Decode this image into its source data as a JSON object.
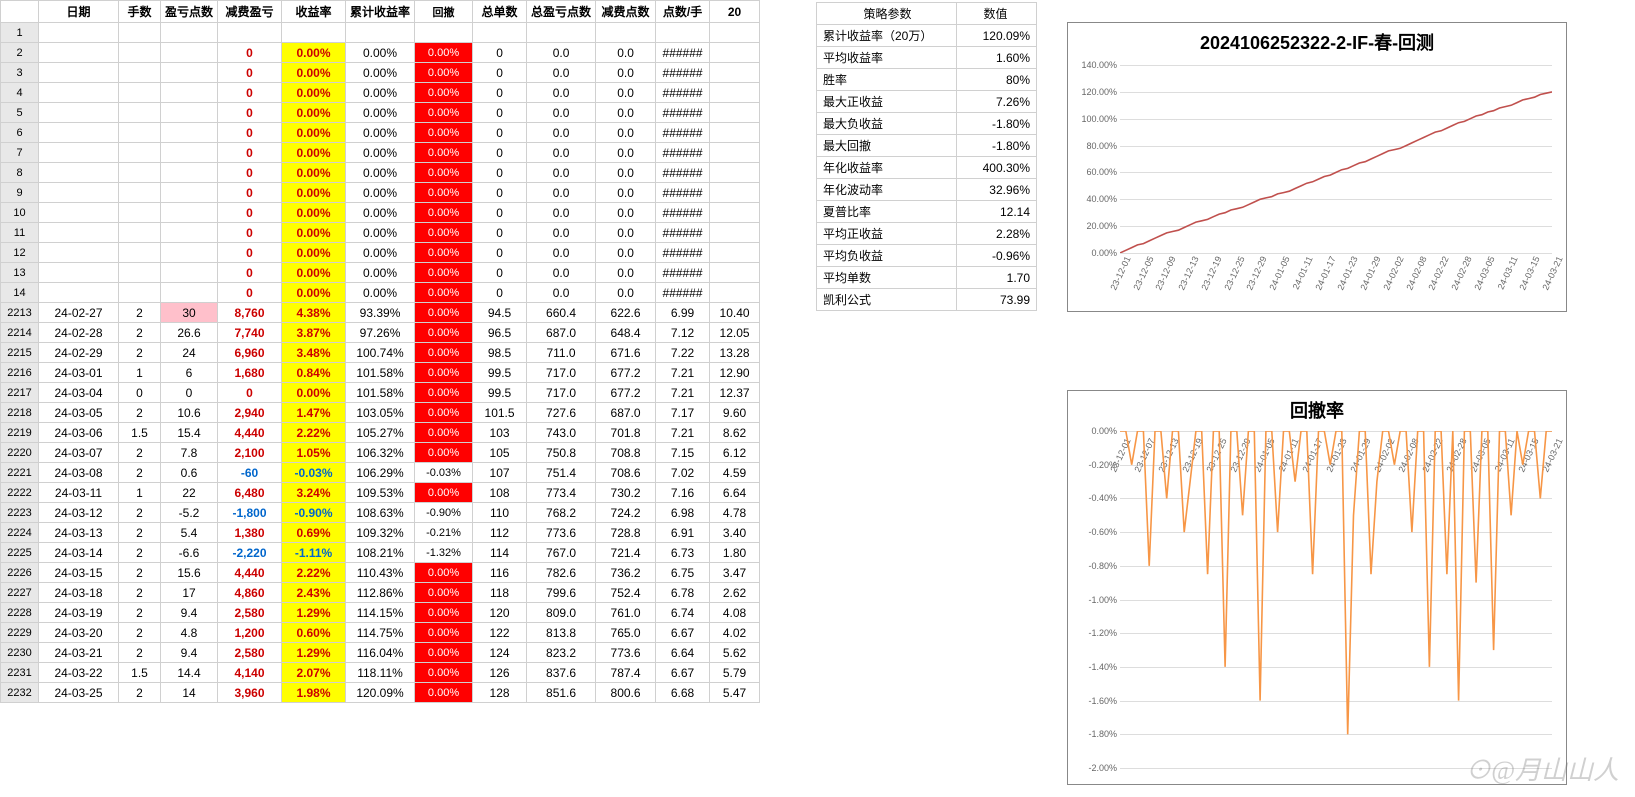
{
  "headers": {
    "row_num": "",
    "date": "日期",
    "lots": "手数",
    "pl_pts": "盈亏点数",
    "fee_pl": "减费盈亏",
    "ret": "收益率",
    "cum_ret": "累计收益率",
    "drawdown": "回撤",
    "tot_lots": "总单数",
    "tot_pl": "总盈亏点数",
    "fee_pts": "减费点数",
    "pts_per": "点数/手",
    "last": "20"
  },
  "top_rows": [
    {
      "n": "1"
    },
    {
      "n": "2"
    },
    {
      "n": "3"
    },
    {
      "n": "4"
    },
    {
      "n": "5"
    },
    {
      "n": "6"
    },
    {
      "n": "7"
    },
    {
      "n": "8"
    },
    {
      "n": "9"
    },
    {
      "n": "10"
    },
    {
      "n": "11"
    },
    {
      "n": "12"
    },
    {
      "n": "13"
    },
    {
      "n": "14"
    }
  ],
  "zero_row": {
    "fee_pl": "0",
    "ret": "0.00%",
    "cum": "0.00%",
    "dd": "0.00%",
    "tot_lots": "0",
    "tot_pl": "0.0",
    "fee_pts": "0.0",
    "pts_per": "######"
  },
  "data_rows": [
    {
      "n": "2213",
      "d": "24-02-27",
      "a": "2",
      "b": "30",
      "b_pink": true,
      "c": "8,760",
      "ret": "4.38%",
      "cum": "93.39%",
      "dd": "0.00%",
      "dd_red": true,
      "g": "94.5",
      "h": "660.4",
      "i": "622.6",
      "j": "6.99",
      "k": "10.40"
    },
    {
      "n": "2214",
      "d": "24-02-28",
      "a": "2",
      "b": "26.6",
      "c": "7,740",
      "ret": "3.87%",
      "cum": "97.26%",
      "dd": "0.00%",
      "dd_red": true,
      "g": "96.5",
      "h": "687.0",
      "i": "648.4",
      "j": "7.12",
      "k": "12.05"
    },
    {
      "n": "2215",
      "d": "24-02-29",
      "a": "2",
      "b": "24",
      "c": "6,960",
      "ret": "3.48%",
      "cum": "100.74%",
      "dd": "0.00%",
      "dd_red": true,
      "g": "98.5",
      "h": "711.0",
      "i": "671.6",
      "j": "7.22",
      "k": "13.28"
    },
    {
      "n": "2216",
      "d": "24-03-01",
      "a": "1",
      "b": "6",
      "c": "1,680",
      "ret": "0.84%",
      "cum": "101.58%",
      "dd": "0.00%",
      "dd_red": true,
      "g": "99.5",
      "h": "717.0",
      "i": "677.2",
      "j": "7.21",
      "k": "12.90"
    },
    {
      "n": "2217",
      "d": "24-03-04",
      "a": "0",
      "b": "0",
      "c": "0",
      "ret": "0.00%",
      "cum": "101.58%",
      "dd": "0.00%",
      "dd_red": true,
      "g": "99.5",
      "h": "717.0",
      "i": "677.2",
      "j": "7.21",
      "k": "12.37"
    },
    {
      "n": "2218",
      "d": "24-03-05",
      "a": "2",
      "b": "10.6",
      "c": "2,940",
      "ret": "1.47%",
      "cum": "103.05%",
      "dd": "0.00%",
      "dd_red": true,
      "g": "101.5",
      "h": "727.6",
      "i": "687.0",
      "j": "7.17",
      "k": "9.60"
    },
    {
      "n": "2219",
      "d": "24-03-06",
      "a": "1.5",
      "b": "15.4",
      "c": "4,440",
      "ret": "2.22%",
      "cum": "105.27%",
      "dd": "0.00%",
      "dd_red": true,
      "g": "103",
      "h": "743.0",
      "i": "701.8",
      "j": "7.21",
      "k": "8.62"
    },
    {
      "n": "2220",
      "d": "24-03-07",
      "a": "2",
      "b": "7.8",
      "c": "2,100",
      "ret": "1.05%",
      "cum": "106.32%",
      "dd": "0.00%",
      "dd_red": true,
      "g": "105",
      "h": "750.8",
      "i": "708.8",
      "j": "7.15",
      "k": "6.12"
    },
    {
      "n": "2221",
      "d": "24-03-08",
      "a": "2",
      "b": "0.6",
      "c": "-60",
      "c_neg": true,
      "ret": "-0.03%",
      "ret_neg": true,
      "cum": "106.29%",
      "dd": "-0.03%",
      "dd_red": false,
      "g": "107",
      "h": "751.4",
      "i": "708.6",
      "j": "7.02",
      "k": "4.59"
    },
    {
      "n": "2222",
      "d": "24-03-11",
      "a": "1",
      "b": "22",
      "c": "6,480",
      "ret": "3.24%",
      "cum": "109.53%",
      "dd": "0.00%",
      "dd_red": true,
      "g": "108",
      "h": "773.4",
      "i": "730.2",
      "j": "7.16",
      "k": "6.64"
    },
    {
      "n": "2223",
      "d": "24-03-12",
      "a": "2",
      "b": "-5.2",
      "c": "-1,800",
      "c_neg": true,
      "ret": "-0.90%",
      "ret_neg": true,
      "cum": "108.63%",
      "dd": "-0.90%",
      "dd_red": false,
      "g": "110",
      "h": "768.2",
      "i": "724.2",
      "j": "6.98",
      "k": "4.78"
    },
    {
      "n": "2224",
      "d": "24-03-13",
      "a": "2",
      "b": "5.4",
      "c": "1,380",
      "ret": "0.69%",
      "cum": "109.32%",
      "dd": "-0.21%",
      "dd_red": false,
      "g": "112",
      "h": "773.6",
      "i": "728.8",
      "j": "6.91",
      "k": "3.40"
    },
    {
      "n": "2225",
      "d": "24-03-14",
      "a": "2",
      "b": "-6.6",
      "c": "-2,220",
      "c_neg": true,
      "ret": "-1.11%",
      "ret_neg": true,
      "cum": "108.21%",
      "dd": "-1.32%",
      "dd_red": false,
      "g": "114",
      "h": "767.0",
      "i": "721.4",
      "j": "6.73",
      "k": "1.80"
    },
    {
      "n": "2226",
      "d": "24-03-15",
      "a": "2",
      "b": "15.6",
      "c": "4,440",
      "ret": "2.22%",
      "cum": "110.43%",
      "dd": "0.00%",
      "dd_red": true,
      "g": "116",
      "h": "782.6",
      "i": "736.2",
      "j": "6.75",
      "k": "3.47"
    },
    {
      "n": "2227",
      "d": "24-03-18",
      "a": "2",
      "b": "17",
      "c": "4,860",
      "ret": "2.43%",
      "cum": "112.86%",
      "dd": "0.00%",
      "dd_red": true,
      "g": "118",
      "h": "799.6",
      "i": "752.4",
      "j": "6.78",
      "k": "2.62"
    },
    {
      "n": "2228",
      "d": "24-03-19",
      "a": "2",
      "b": "9.4",
      "c": "2,580",
      "ret": "1.29%",
      "cum": "114.15%",
      "dd": "0.00%",
      "dd_red": true,
      "g": "120",
      "h": "809.0",
      "i": "761.0",
      "j": "6.74",
      "k": "4.08"
    },
    {
      "n": "2229",
      "d": "24-03-20",
      "a": "2",
      "b": "4.8",
      "c": "1,200",
      "ret": "0.60%",
      "cum": "114.75%",
      "dd": "0.00%",
      "dd_red": true,
      "g": "122",
      "h": "813.8",
      "i": "765.0",
      "j": "6.67",
      "k": "4.02"
    },
    {
      "n": "2230",
      "d": "24-03-21",
      "a": "2",
      "b": "9.4",
      "c": "2,580",
      "ret": "1.29%",
      "cum": "116.04%",
      "dd": "0.00%",
      "dd_red": true,
      "g": "124",
      "h": "823.2",
      "i": "773.6",
      "j": "6.64",
      "k": "5.62"
    },
    {
      "n": "2231",
      "d": "24-03-22",
      "a": "1.5",
      "b": "14.4",
      "c": "4,140",
      "ret": "2.07%",
      "cum": "118.11%",
      "dd": "0.00%",
      "dd_red": true,
      "g": "126",
      "h": "837.6",
      "i": "787.4",
      "j": "6.67",
      "k": "5.79"
    },
    {
      "n": "2232",
      "d": "24-03-25",
      "a": "2",
      "b": "14",
      "c": "3,960",
      "ret": "1.98%",
      "cum": "120.09%",
      "dd": "0.00%",
      "dd_red": true,
      "g": "128",
      "h": "851.6",
      "i": "800.6",
      "j": "6.68",
      "k": "5.47"
    }
  ],
  "params": {
    "header_l": "策略参数",
    "header_r": "数值",
    "rows": [
      {
        "l": "累计收益率（20万）",
        "r": "120.09%"
      },
      {
        "l": "平均收益率",
        "r": "1.60%"
      },
      {
        "l": "胜率",
        "r": "80%"
      },
      {
        "l": "最大正收益",
        "r": "7.26%"
      },
      {
        "l": "最大负收益",
        "r": "-1.80%"
      },
      {
        "l": "最大回撤",
        "r": "-1.80%"
      },
      {
        "l": "年化收益率",
        "r": "400.30%"
      },
      {
        "l": "年化波动率",
        "r": "32.96%"
      },
      {
        "l": "夏普比率",
        "r": "12.14"
      },
      {
        "l": "平均正收益",
        "r": "2.28%"
      },
      {
        "l": "平均负收益",
        "r": "-0.96%"
      },
      {
        "l": "平均单数",
        "r": "1.70"
      },
      {
        "l": "凯利公式",
        "r": "73.99"
      }
    ]
  },
  "chart1": {
    "title": "2024106252322-2-IF-春-回测",
    "y_ticks": [
      "0.00%",
      "20.00%",
      "40.00%",
      "60.00%",
      "80.00%",
      "100.00%",
      "120.00%",
      "140.00%"
    ],
    "x_ticks": [
      "23-12-01",
      "23-12-05",
      "23-12-09",
      "23-12-13",
      "23-12-19",
      "23-12-25",
      "23-12-29",
      "24-01-05",
      "24-01-11",
      "24-01-17",
      "24-01-23",
      "24-01-29",
      "24-02-02",
      "24-02-08",
      "24-02-22",
      "24-02-28",
      "24-03-05",
      "24-03-11",
      "24-03-15",
      "24-03-21"
    ],
    "ymin": 0,
    "ymax": 140,
    "line_color": "#c0504d",
    "series": [
      0,
      2,
      4,
      6,
      7,
      9,
      11,
      13,
      15,
      16,
      17,
      19,
      21,
      23,
      24,
      25,
      27,
      29,
      30,
      32,
      33,
      34,
      36,
      38,
      40,
      41,
      42,
      44,
      45,
      46,
      48,
      50,
      52,
      53,
      55,
      57,
      58,
      60,
      62,
      63,
      65,
      67,
      68,
      70,
      72,
      74,
      76,
      77,
      78,
      80,
      82,
      84,
      86,
      88,
      90,
      91,
      93,
      95,
      97,
      98,
      100,
      102,
      103,
      105,
      106,
      108,
      109,
      110,
      112,
      114,
      115,
      116,
      118,
      119,
      120
    ]
  },
  "chart2": {
    "title": "回撤率",
    "y_ticks": [
      "-2.00%",
      "-1.80%",
      "-1.60%",
      "-1.40%",
      "-1.20%",
      "-1.00%",
      "-0.80%",
      "-0.60%",
      "-0.40%",
      "-0.20%",
      "0.00%"
    ],
    "x_ticks": [
      "23-12-01",
      "23-12-07",
      "23-12-13",
      "23-12-19",
      "23-12-25",
      "23-12-29",
      "24-01-05",
      "24-01-11",
      "24-01-17",
      "24-01-23",
      "24-01-29",
      "24-02-02",
      "24-02-08",
      "24-02-22",
      "24-02-28",
      "24-03-05",
      "24-03-11",
      "24-03-15",
      "24-03-21"
    ],
    "ymin": -2.0,
    "ymax": 0,
    "line_color": "#f79646",
    "series": [
      0,
      0,
      -0.2,
      0,
      0,
      -0.8,
      0,
      0,
      -0.4,
      0,
      0,
      -0.6,
      -0.3,
      0,
      0,
      -0.85,
      0,
      0,
      -1.4,
      0,
      0,
      -0.5,
      0,
      0,
      -1.6,
      0,
      0,
      -0.6,
      0,
      0,
      -0.3,
      0,
      0,
      -0.85,
      0,
      0,
      -0.2,
      0,
      0,
      -1.8,
      -0.5,
      0,
      0,
      -0.85,
      -0.3,
      0,
      0,
      -0.2,
      0,
      0,
      -0.6,
      0,
      0,
      -1.4,
      0,
      0,
      -0.85,
      0,
      -1.6,
      0,
      0,
      -0.9,
      0,
      0,
      -1.3,
      0,
      0,
      -0.5,
      0,
      -0.2,
      0,
      0,
      -0.4,
      0,
      0
    ]
  },
  "watermark": "⊙@月山山人"
}
